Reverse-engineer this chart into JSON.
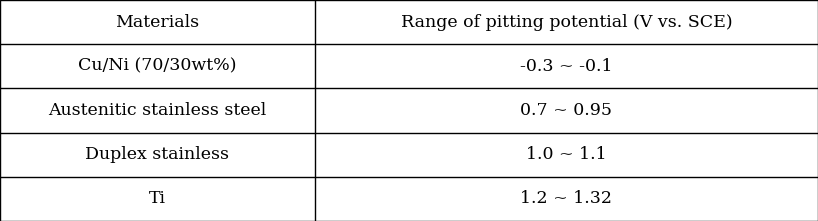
{
  "headers": [
    "Materials",
    "Range of pitting potential (V vs. SCE)"
  ],
  "rows": [
    [
      "Cu/Ni (70/30wt%)",
      "-0.3 ~ -0.1"
    ],
    [
      "Austenitic stainless steel",
      "0.7 ~ 0.95"
    ],
    [
      "Duplex stainless",
      "1.0 ~ 1.1"
    ],
    [
      "Ti",
      "1.2 ~ 1.32"
    ]
  ],
  "background_color": "#ffffff",
  "line_color": "#000000",
  "text_color": "#000000",
  "font_size": 12.5,
  "header_font_size": 12.5,
  "col_split": 0.385,
  "figsize": [
    8.18,
    2.21
  ],
  "dpi": 100,
  "lw": 1.0
}
